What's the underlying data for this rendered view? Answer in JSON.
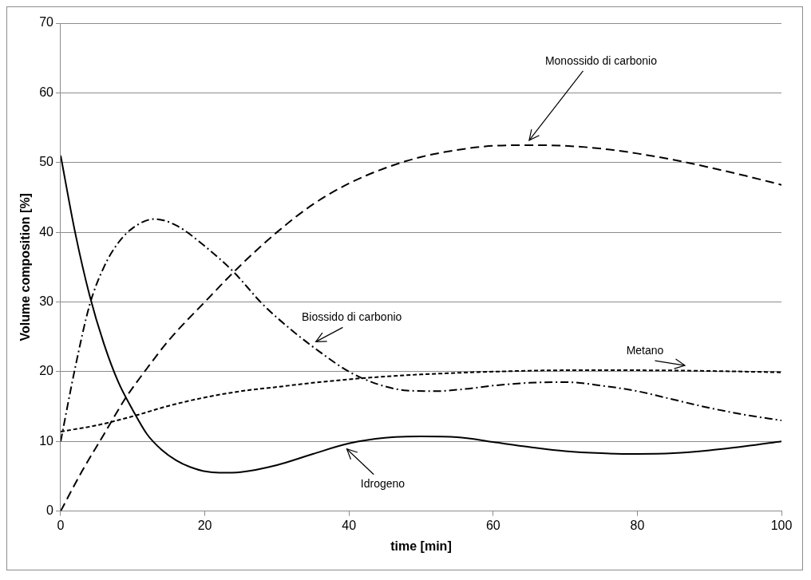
{
  "chart_data": {
    "type": "line",
    "xlabel": "time [min]",
    "ylabel": "Volume composition [%]",
    "xlim": [
      0,
      100
    ],
    "ylim": [
      0,
      70
    ],
    "xticks": [
      0,
      20,
      40,
      60,
      80,
      100
    ],
    "yticks": [
      0,
      10,
      20,
      30,
      40,
      50,
      60,
      70
    ],
    "grid": "y",
    "legend": false,
    "marker": "none",
    "series": [
      {
        "color": "#000000",
        "line_style": "solid",
        "x": [
          0,
          2,
          4,
          6,
          8,
          10,
          12,
          14,
          16,
          18,
          20,
          22,
          25,
          30,
          35,
          40,
          45,
          50,
          55,
          60,
          65,
          70,
          75,
          80,
          85,
          90,
          95,
          100
        ],
        "values": [
          51,
          40,
          31,
          24,
          18.5,
          14.5,
          11,
          8.8,
          7.3,
          6.3,
          5.7,
          5.5,
          5.6,
          6.6,
          8.2,
          9.7,
          10.5,
          10.7,
          10.6,
          9.9,
          9.2,
          8.6,
          8.3,
          8.2,
          8.3,
          8.7,
          9.3,
          10
        ]
      },
      {
        "color": "#000000",
        "line_style": "dashdot",
        "x": [
          0,
          2,
          4,
          6,
          8,
          10,
          13,
          16,
          20,
          24,
          28,
          32,
          36,
          40,
          44,
          48,
          52,
          56,
          60,
          65,
          70,
          75,
          80,
          85,
          90,
          95,
          100
        ],
        "values": [
          10,
          20.5,
          29.5,
          35,
          38.5,
          40.6,
          41.9,
          41,
          38,
          34.3,
          29.7,
          26,
          22.8,
          20,
          18.2,
          17.3,
          17.2,
          17.5,
          18,
          18.4,
          18.5,
          18,
          17.2,
          16,
          14.8,
          13.8,
          13
        ]
      },
      {
        "color": "#000000",
        "line_style": "dashed",
        "x": [
          0,
          3,
          6,
          9,
          12,
          15,
          20,
          25,
          30,
          35,
          40,
          45,
          50,
          55,
          60,
          65,
          70,
          75,
          80,
          85,
          90,
          95,
          100
        ],
        "values": [
          0,
          5.8,
          11,
          16.2,
          20.5,
          24.5,
          30,
          35.3,
          40,
          44,
          47,
          49.2,
          50.8,
          51.8,
          52.4,
          52.5,
          52.4,
          52,
          51.3,
          50.4,
          49.3,
          48.1,
          46.8
        ]
      },
      {
        "color": "#000000",
        "line_style": "dotted",
        "x": [
          0,
          5,
          10,
          15,
          20,
          25,
          30,
          35,
          40,
          45,
          50,
          60,
          70,
          80,
          90,
          100
        ],
        "values": [
          11.4,
          12.3,
          13.6,
          15.1,
          16.3,
          17.2,
          17.8,
          18.4,
          18.9,
          19.3,
          19.6,
          20,
          20.2,
          20.2,
          20.1,
          19.9
        ]
      }
    ],
    "annotations": [
      {
        "text": "Monossido di carbonio",
        "x": 65,
        "y": 52.5
      },
      {
        "text": "Biossido di carbonio",
        "x": 35.4,
        "y": 23.6
      },
      {
        "text": "Metano",
        "x": 86.6,
        "y": 20.2
      },
      {
        "text": "Idrogeno",
        "x": 39.7,
        "y": 9.6
      }
    ]
  }
}
